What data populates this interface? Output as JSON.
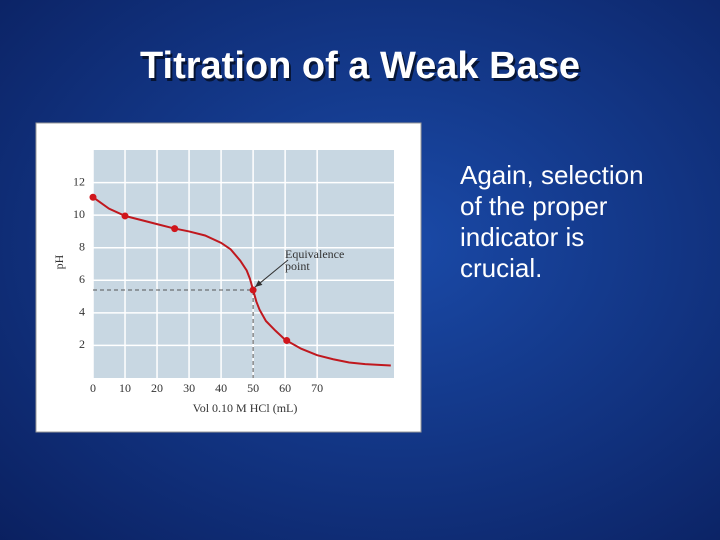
{
  "title": "Titration of a Weak Base",
  "text": [
    "Again, selection",
    "of the proper",
    "indicator is",
    "crucial."
  ],
  "chart_data": {
    "type": "line",
    "x_label": "Vol 0.10 M HCl (mL)",
    "y_label": "pH",
    "annotation": [
      "Equivalence",
      "point"
    ],
    "x": [
      0,
      5,
      10,
      15,
      20,
      25,
      30,
      35,
      40,
      43,
      46,
      48,
      49,
      50,
      51,
      52,
      54,
      57,
      60,
      65,
      70,
      75,
      80,
      85,
      90,
      93
    ],
    "series": [
      {
        "name": "pH",
        "color": "#c0181e",
        "values": [
          11.1,
          10.4,
          9.95,
          9.7,
          9.45,
          9.2,
          9.0,
          8.75,
          8.3,
          7.9,
          7.2,
          6.6,
          6.1,
          5.4,
          4.7,
          4.2,
          3.5,
          2.9,
          2.35,
          1.8,
          1.4,
          1.15,
          0.95,
          0.85,
          0.8,
          0.77
        ]
      }
    ],
    "markers": {
      "x": [
        0,
        10,
        25.5,
        50,
        60.5
      ],
      "values": [
        11.1,
        9.95,
        9.17,
        5.4,
        2.3
      ],
      "color": "#d0161c"
    },
    "equivalence": {
      "x": 50,
      "value": 5.4
    },
    "xlim": [
      0,
      94
    ],
    "ylim": [
      0,
      14
    ],
    "xticks": [
      0,
      10,
      20,
      30,
      40,
      50,
      60,
      70
    ],
    "yticks": [
      2,
      4,
      6,
      8,
      10,
      12
    ],
    "grid": true
  }
}
